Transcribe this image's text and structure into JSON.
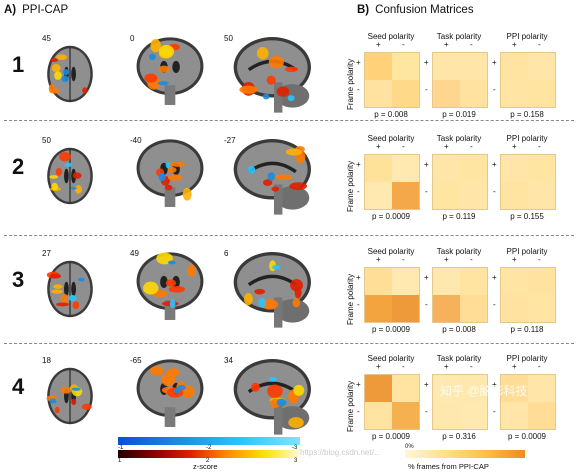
{
  "panels": {
    "a_letter": "A)",
    "a_title": "PPI-CAP",
    "b_letter": "B)",
    "b_title": "Confusion Matrices"
  },
  "rows": [
    {
      "num": "1",
      "coords": [
        "45",
        "0",
        "50"
      ],
      "pvals": [
        "p = 0.008",
        "p = 0.019",
        "p = 0.158"
      ]
    },
    {
      "num": "2",
      "coords": [
        "50",
        "-40",
        "-27"
      ],
      "pvals": [
        "p = 0.0009",
        "p = 0.119",
        "p = 0.155"
      ]
    },
    {
      "num": "3",
      "coords": [
        "27",
        "49",
        "6"
      ],
      "pvals": [
        "p = 0.0009",
        "p = 0.008",
        "p = 0.118"
      ]
    },
    {
      "num": "4",
      "coords": [
        "18",
        "-65",
        "34"
      ],
      "pvals": [
        "p = 0.0009",
        "p = 0.316",
        "p = 0.0009"
      ]
    }
  ],
  "matrix_headers": [
    "Seed polarity",
    "Task polarity",
    "PPI polarity"
  ],
  "signs": {
    "plus": "+",
    "minus": "-"
  },
  "frame_polarity_label": "Frame polarity",
  "matrix_colors": [
    [
      [
        "#ffd27a",
        "#ffe6a0",
        "#ffe2a0",
        "#ffd98a"
      ],
      [
        "#ffe6a8",
        "#ffe6a8",
        "#ffd690",
        "#ffe2a0"
      ],
      [
        "#ffe3a0",
        "#ffe6a8",
        "#ffe4a4",
        "#ffe3a0"
      ]
    ],
    [
      [
        "#ffe29a",
        "#ffe9b0",
        "#ffe9b0",
        "#f5a84a"
      ],
      [
        "#ffe6a8",
        "#ffe4a2",
        "#ffe4a2",
        "#ffe6a8"
      ],
      [
        "#ffe6a8",
        "#ffe4a2",
        "#ffe3a0",
        "#ffe6a8"
      ]
    ],
    [
      [
        "#ffdf98",
        "#ffe9b0",
        "#f3a43e",
        "#ef9a3a"
      ],
      [
        "#ffe8ad",
        "#ffe3a0",
        "#f5b25a",
        "#ffdd96"
      ],
      [
        "#ffe4a4",
        "#ffe2a0",
        "#ffe2a0",
        "#ffe4a4"
      ]
    ],
    [
      [
        "#ef9a3a",
        "#ffe3a0",
        "#ffe3a0",
        "#f5b050"
      ],
      [
        "#ffe9b0",
        "#ffe8ad",
        "#ffe8ad",
        "#ffe9b0"
      ],
      [
        "#ffdd96",
        "#ffe6a8",
        "#ffe6a8",
        "#ffdd96"
      ]
    ]
  ],
  "colorbar": {
    "label": "z-score",
    "pos_ticks": [
      "1",
      "2",
      "3"
    ],
    "neg_ticks": [
      "-1",
      "-2",
      "-3"
    ],
    "pct_label": "% frames from PPI-CAP",
    "pct_ticks": [
      "0%"
    ]
  },
  "watermarks": {
    "zhihu": "知乎 @脑影科技",
    "csdn": "https://blog.csdn.net/..."
  }
}
